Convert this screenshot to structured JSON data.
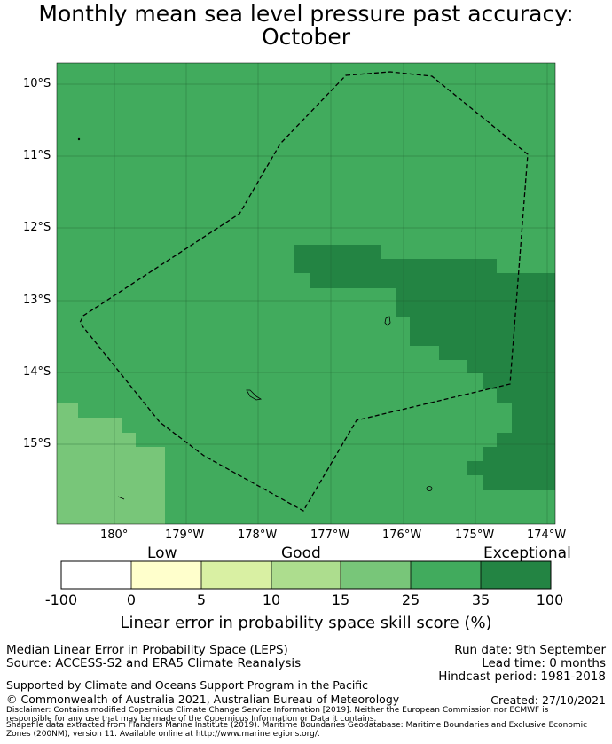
{
  "title": {
    "line1": "Monthly mean sea level pressure past accuracy:",
    "line2": "October"
  },
  "map": {
    "lat_range": [
      -16.1,
      -9.7
    ],
    "lon_range": [
      179.2,
      185.9
    ],
    "lat_ticks": [
      "10°S",
      "11°S",
      "12°S",
      "13°S",
      "14°S",
      "15°S"
    ],
    "lon_ticks": [
      "180°",
      "179°W",
      "178°W",
      "177°W",
      "176°W",
      "175°W",
      "174°W"
    ],
    "background_skill": "25 to 35",
    "regions": [
      {
        "skill": "35 to 100",
        "description": "exceptional patch east of 13°S"
      },
      {
        "skill": "15 to 25",
        "description": "good patch southwest corner"
      }
    ],
    "boundary_style": "dashed"
  },
  "colorbar": {
    "bins": [
      "-100",
      "0",
      "5",
      "10",
      "15",
      "25",
      "35",
      "100"
    ],
    "colors": [
      "#ffffff",
      "#ffffcc",
      "#d9f0a3",
      "#addd8e",
      "#78c679",
      "#41ab5d",
      "#238443"
    ],
    "level_labels": {
      "low": "Low",
      "good": "Good",
      "exceptional": "Exceptional"
    },
    "label": "Linear error in probability space skill score (%)"
  },
  "footer": {
    "method": "Median Linear Error in Probability Space (LEPS)",
    "source": "Source: ACCESS-S2 and ERA5 Climate Reanalysis",
    "run_date": "Run date: 9th September",
    "lead_time": "Lead time: 0 months",
    "hindcast": "Hindcast period: 1981-2018",
    "supported": "Supported by Climate and Oceans Support Program in the Pacific",
    "copyright": "© Commonwealth of Australia 2021, Australian Bureau of Meteorology",
    "created": "Created: 27/10/2021",
    "disclaimer1": "Disclaimer: Contains modified Copernicus Climate Change Service Information [2019]. Neither the European Commission nor ECMWF is",
    "disclaimer2": "responsible for any use that may be made of the Copernicus Information or Data it contains.",
    "disclaimer3": "Shapefile data extracted from Flanders Marine Institute (2019). Maritime Boundaries Geodatabase: Maritime Boundaries and Exclusive Economic",
    "disclaimer4": "Zones (200NM), version 11. Available online at http://www.marineregions.org/."
  }
}
